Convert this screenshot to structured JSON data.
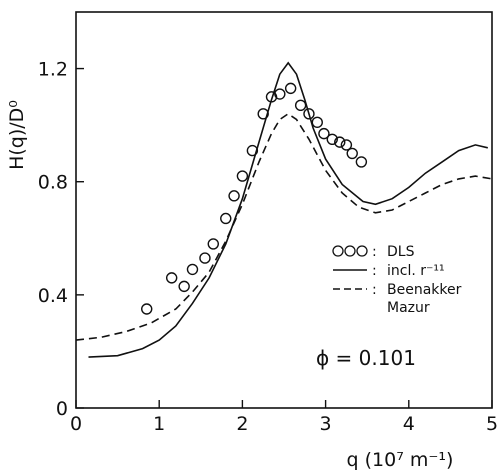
{
  "chart_data": {
    "type": "line",
    "xlabel": "q (10⁷ m⁻¹)",
    "ylabel": "H(q)/D⁰",
    "xlim": [
      0,
      5
    ],
    "ylim": [
      0,
      1.4
    ],
    "x_ticks": [
      "0",
      "1",
      "2",
      "3",
      "4",
      "5"
    ],
    "y_ticks": [
      "0",
      "0.4",
      "0.8",
      "1.2"
    ],
    "grid": false,
    "legend_placement": "right",
    "annotation": "ϕ = 0.101",
    "legend": [
      {
        "symbol": "OOO",
        "sep": ":",
        "label": "DLS"
      },
      {
        "symbol": "solid",
        "sep": ":",
        "label": "incl. r⁻¹¹"
      },
      {
        "symbol": "dashed",
        "sep": ":",
        "label": "Beenakker"
      },
      {
        "symbol": "",
        "sep": "",
        "label": "Mazur"
      }
    ],
    "series": [
      {
        "name": "DLS",
        "style": "markers",
        "points": [
          [
            0.85,
            0.35
          ],
          [
            1.15,
            0.46
          ],
          [
            1.3,
            0.43
          ],
          [
            1.4,
            0.49
          ],
          [
            1.55,
            0.53
          ],
          [
            1.65,
            0.58
          ],
          [
            1.8,
            0.67
          ],
          [
            1.9,
            0.75
          ],
          [
            2.0,
            0.82
          ],
          [
            2.12,
            0.91
          ],
          [
            2.25,
            1.04
          ],
          [
            2.35,
            1.1
          ],
          [
            2.45,
            1.11
          ],
          [
            2.58,
            1.13
          ],
          [
            2.7,
            1.07
          ],
          [
            2.8,
            1.04
          ],
          [
            2.9,
            1.01
          ],
          [
            2.98,
            0.97
          ],
          [
            3.08,
            0.95
          ],
          [
            3.17,
            0.94
          ],
          [
            3.25,
            0.93
          ],
          [
            3.32,
            0.9
          ],
          [
            3.43,
            0.87
          ]
        ]
      },
      {
        "name": "incl. r⁻¹¹",
        "style": "solid",
        "points": [
          [
            0.15,
            0.18
          ],
          [
            0.5,
            0.185
          ],
          [
            0.8,
            0.21
          ],
          [
            1.0,
            0.24
          ],
          [
            1.2,
            0.29
          ],
          [
            1.4,
            0.37
          ],
          [
            1.6,
            0.46
          ],
          [
            1.8,
            0.58
          ],
          [
            2.0,
            0.74
          ],
          [
            2.2,
            0.94
          ],
          [
            2.35,
            1.09
          ],
          [
            2.45,
            1.18
          ],
          [
            2.55,
            1.22
          ],
          [
            2.65,
            1.18
          ],
          [
            2.75,
            1.09
          ],
          [
            2.85,
            0.99
          ],
          [
            3.0,
            0.88
          ],
          [
            3.2,
            0.79
          ],
          [
            3.45,
            0.73
          ],
          [
            3.6,
            0.72
          ],
          [
            3.8,
            0.74
          ],
          [
            4.0,
            0.78
          ],
          [
            4.2,
            0.83
          ],
          [
            4.4,
            0.87
          ],
          [
            4.6,
            0.91
          ],
          [
            4.8,
            0.93
          ],
          [
            4.95,
            0.92
          ]
        ]
      },
      {
        "name": "Beenakker Mazur",
        "style": "dashed",
        "points": [
          [
            0.0,
            0.24
          ],
          [
            0.3,
            0.25
          ],
          [
            0.6,
            0.27
          ],
          [
            0.9,
            0.3
          ],
          [
            1.2,
            0.35
          ],
          [
            1.4,
            0.41
          ],
          [
            1.6,
            0.48
          ],
          [
            1.8,
            0.59
          ],
          [
            2.0,
            0.72
          ],
          [
            2.2,
            0.87
          ],
          [
            2.35,
            0.97
          ],
          [
            2.45,
            1.02
          ],
          [
            2.55,
            1.04
          ],
          [
            2.65,
            1.02
          ],
          [
            2.8,
            0.95
          ],
          [
            3.0,
            0.84
          ],
          [
            3.2,
            0.76
          ],
          [
            3.4,
            0.71
          ],
          [
            3.6,
            0.69
          ],
          [
            3.8,
            0.7
          ],
          [
            4.0,
            0.73
          ],
          [
            4.2,
            0.76
          ],
          [
            4.4,
            0.79
          ],
          [
            4.6,
            0.81
          ],
          [
            4.8,
            0.82
          ],
          [
            5.0,
            0.81
          ]
        ]
      }
    ]
  }
}
